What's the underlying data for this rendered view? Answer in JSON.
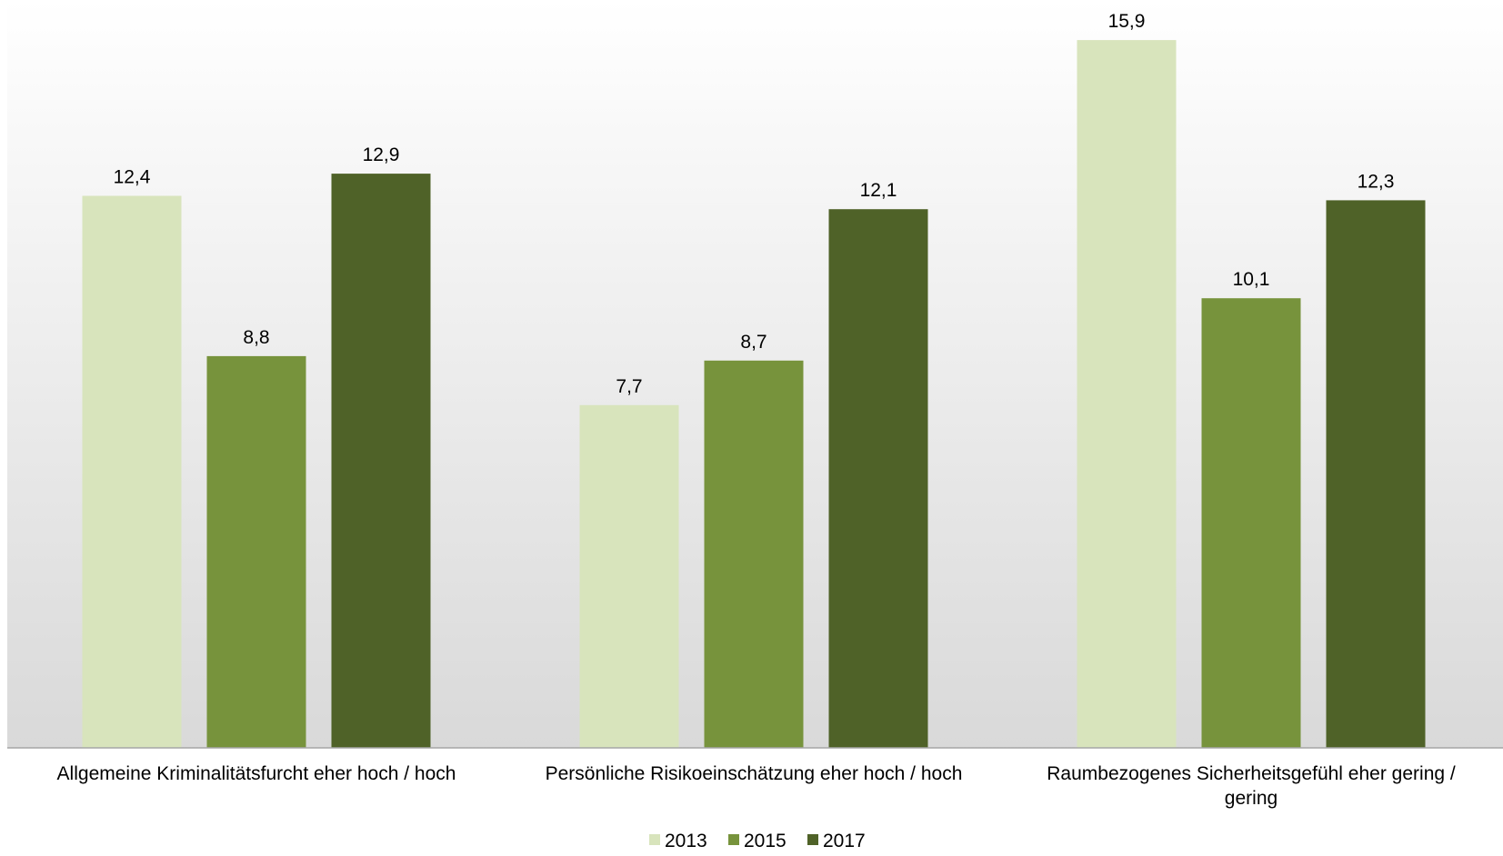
{
  "chart_data": {
    "type": "bar",
    "categories": [
      [
        "Allgemeine Kriminalitätsfurcht eher hoch / hoch"
      ],
      [
        "Persönliche Risikoeinschätzung eher hoch / hoch"
      ],
      [
        "Raumbezogenes Sicherheitsgefühl eher gering /",
        "gering"
      ]
    ],
    "series": [
      {
        "name": "2013",
        "color": "#d8e4bc",
        "values": [
          12.4,
          7.7,
          15.9
        ],
        "labels": [
          "12,4",
          "7,7",
          "15,9"
        ]
      },
      {
        "name": "2015",
        "color": "#77933c",
        "values": [
          8.8,
          8.7,
          10.1
        ],
        "labels": [
          "8,8",
          "8,7",
          "10,1"
        ]
      },
      {
        "name": "2017",
        "color": "#4f6228",
        "values": [
          12.9,
          12.1,
          12.3
        ],
        "labels": [
          "12,9",
          "12,1",
          "12,3"
        ]
      }
    ],
    "ylim": [
      0,
      16.8
    ],
    "grid": false,
    "legend_position": "bottom",
    "background_gradient": [
      "#ffffff",
      "#d9d9d9"
    ]
  }
}
